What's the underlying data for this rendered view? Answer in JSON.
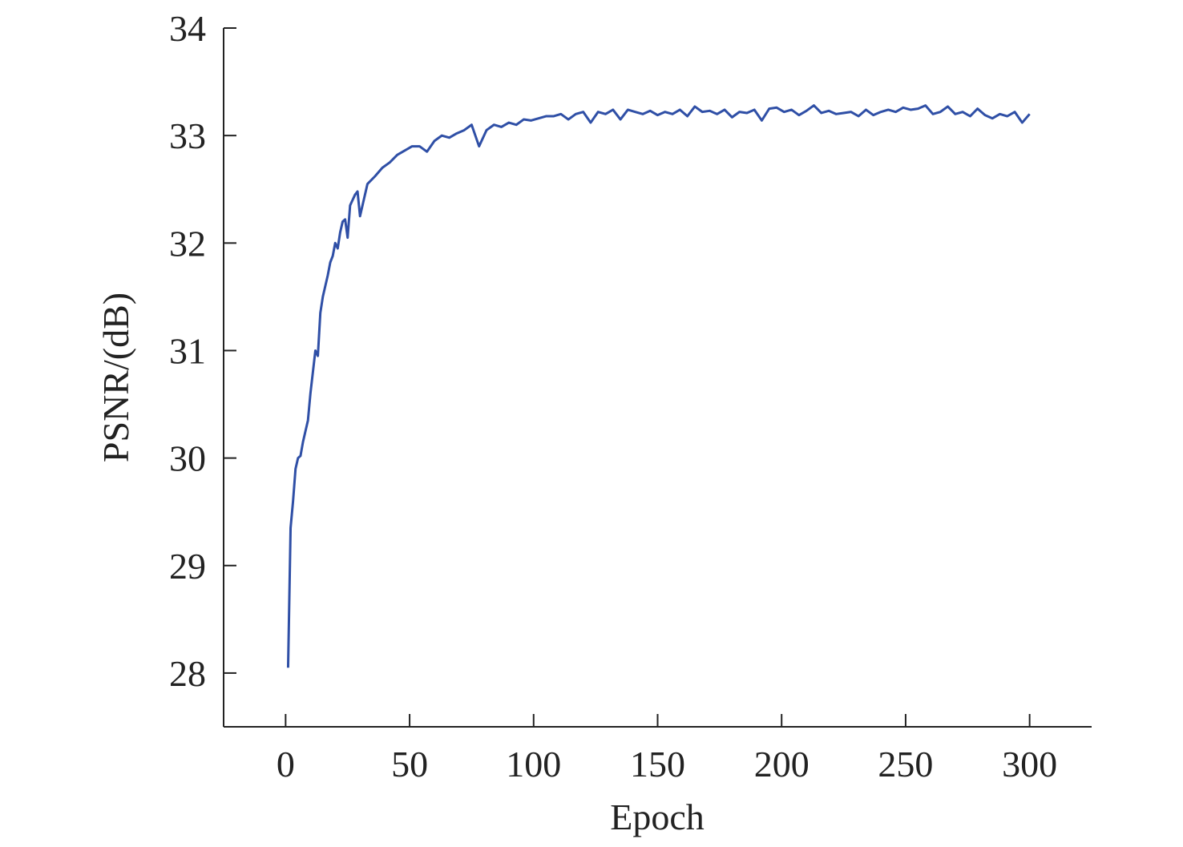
{
  "chart_data": {
    "type": "line",
    "xlabel": "Epoch",
    "ylabel": "PSNR/(dB)",
    "x": [
      1,
      2,
      3,
      4,
      5,
      6,
      7,
      8,
      9,
      10,
      11,
      12,
      13,
      14,
      15,
      16,
      17,
      18,
      19,
      20,
      21,
      22,
      23,
      24,
      25,
      26,
      27,
      28,
      29,
      30,
      33,
      36,
      39,
      42,
      45,
      48,
      51,
      54,
      57,
      60,
      63,
      66,
      69,
      72,
      75,
      78,
      81,
      84,
      87,
      90,
      93,
      96,
      99,
      102,
      105,
      108,
      111,
      114,
      117,
      120,
      123,
      126,
      129,
      132,
      135,
      138,
      141,
      144,
      147,
      150,
      153,
      156,
      159,
      162,
      165,
      168,
      171,
      174,
      177,
      180,
      183,
      186,
      189,
      192,
      195,
      198,
      201,
      204,
      207,
      210,
      213,
      216,
      219,
      222,
      225,
      228,
      231,
      234,
      237,
      240,
      243,
      246,
      249,
      252,
      255,
      258,
      261,
      264,
      267,
      270,
      273,
      276,
      279,
      282,
      285,
      288,
      291,
      294,
      297,
      300
    ],
    "values": [
      28.05,
      29.35,
      29.6,
      29.9,
      30.0,
      30.02,
      30.15,
      30.25,
      30.35,
      30.6,
      30.8,
      31.0,
      30.95,
      31.35,
      31.5,
      31.6,
      31.7,
      31.82,
      31.88,
      32.0,
      31.95,
      32.1,
      32.2,
      32.22,
      32.05,
      32.35,
      32.4,
      32.45,
      32.48,
      32.25,
      32.55,
      32.62,
      32.7,
      32.75,
      32.82,
      32.86,
      32.9,
      32.9,
      32.85,
      32.95,
      33.0,
      32.98,
      33.02,
      33.05,
      33.1,
      32.9,
      33.05,
      33.1,
      33.08,
      33.12,
      33.1,
      33.15,
      33.14,
      33.16,
      33.18,
      33.18,
      33.2,
      33.15,
      33.2,
      33.22,
      33.12,
      33.22,
      33.2,
      33.24,
      33.15,
      33.24,
      33.22,
      33.2,
      33.23,
      33.19,
      33.22,
      33.2,
      33.24,
      33.18,
      33.27,
      33.22,
      33.23,
      33.2,
      33.24,
      33.17,
      33.22,
      33.21,
      33.24,
      33.14,
      33.25,
      33.26,
      33.22,
      33.24,
      33.19,
      33.23,
      33.28,
      33.21,
      33.23,
      33.2,
      33.21,
      33.22,
      33.18,
      33.24,
      33.19,
      33.22,
      33.24,
      33.22,
      33.26,
      33.24,
      33.25,
      33.28,
      33.2,
      33.22,
      33.27,
      33.2,
      33.22,
      33.18,
      33.25,
      33.19,
      33.16,
      33.2,
      33.18,
      33.22,
      33.12,
      33.2
    ],
    "color": "#2f4fa6",
    "xlim": [
      -25,
      325
    ],
    "ylim": [
      27.5,
      34
    ],
    "xticks": [
      0,
      50,
      100,
      150,
      200,
      250,
      300
    ],
    "yticks": [
      28,
      29,
      30,
      31,
      32,
      33,
      34
    ]
  }
}
